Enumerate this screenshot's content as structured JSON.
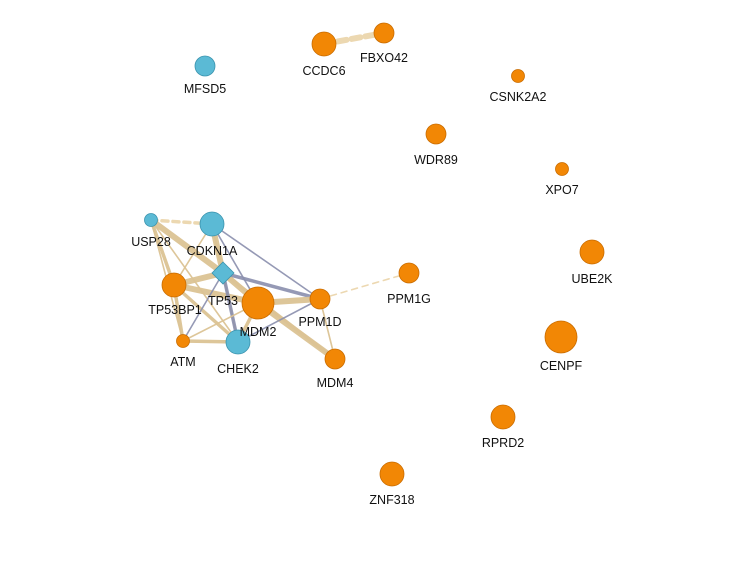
{
  "colors": {
    "orange": "#f28705",
    "orange_stroke": "#c96c00",
    "blue": "#5bbad5",
    "blue_stroke": "#3a93ae",
    "edge_tan": "#dcc394",
    "edge_tan_dashed": "#ecd6ad",
    "edge_gray": "#8a8fad"
  },
  "nodes": [
    {
      "id": "CCDC6",
      "label": "CCDC6",
      "color": "orange",
      "size": "large",
      "shape": "circle"
    },
    {
      "id": "FBXO42",
      "label": "FBXO42",
      "color": "orange",
      "size": "medium",
      "shape": "circle"
    },
    {
      "id": "MFSD5",
      "label": "MFSD5",
      "color": "blue",
      "size": "medium",
      "shape": "circle"
    },
    {
      "id": "CSNK2A2",
      "label": "CSNK2A2",
      "color": "orange",
      "size": "small",
      "shape": "circle"
    },
    {
      "id": "WDR89",
      "label": "WDR89",
      "color": "orange",
      "size": "medium",
      "shape": "circle"
    },
    {
      "id": "XPO7",
      "label": "XPO7",
      "color": "orange",
      "size": "small",
      "shape": "circle"
    },
    {
      "id": "USP28",
      "label": "USP28",
      "color": "blue",
      "size": "small",
      "shape": "circle"
    },
    {
      "id": "CDKN1A",
      "label": "CDKN1A",
      "color": "blue",
      "size": "large",
      "shape": "circle"
    },
    {
      "id": "UBE2K",
      "label": "UBE2K",
      "color": "orange",
      "size": "large",
      "shape": "circle"
    },
    {
      "id": "TP53",
      "label": "TP53",
      "color": "blue",
      "size": "medium",
      "shape": "diamond"
    },
    {
      "id": "PPM1G",
      "label": "PPM1G",
      "color": "orange",
      "size": "medium",
      "shape": "circle"
    },
    {
      "id": "TP53BP1",
      "label": "TP53BP1",
      "color": "orange",
      "size": "large",
      "shape": "circle"
    },
    {
      "id": "MDM2",
      "label": "MDM2",
      "color": "orange",
      "size": "xlarge",
      "shape": "circle"
    },
    {
      "id": "PPM1D",
      "label": "PPM1D",
      "color": "orange",
      "size": "medium",
      "shape": "circle"
    },
    {
      "id": "CENPF",
      "label": "CENPF",
      "color": "orange",
      "size": "xlarge",
      "shape": "circle"
    },
    {
      "id": "ATM",
      "label": "ATM",
      "color": "orange",
      "size": "small",
      "shape": "circle"
    },
    {
      "id": "CHEK2",
      "label": "CHEK2",
      "color": "blue",
      "size": "large",
      "shape": "circle"
    },
    {
      "id": "MDM4",
      "label": "MDM4",
      "color": "orange",
      "size": "medium",
      "shape": "circle"
    },
    {
      "id": "RPRD2",
      "label": "RPRD2",
      "color": "orange",
      "size": "large",
      "shape": "circle"
    },
    {
      "id": "ZNF318",
      "label": "ZNF318",
      "color": "orange",
      "size": "large",
      "shape": "circle"
    }
  ],
  "edges": [
    {
      "source": "CCDC6",
      "target": "FBXO42",
      "style": "tan-dashed",
      "weight": "heavy"
    },
    {
      "source": "USP28",
      "target": "CDKN1A",
      "style": "tan-dashed",
      "weight": "medium"
    },
    {
      "source": "PPM1D",
      "target": "PPM1G",
      "style": "tan-dashed",
      "weight": "thin"
    },
    {
      "source": "USP28",
      "target": "TP53",
      "style": "tan",
      "weight": "heavy"
    },
    {
      "source": "USP28",
      "target": "TP53BP1",
      "style": "tan",
      "weight": "medium"
    },
    {
      "source": "USP28",
      "target": "CHEK2",
      "style": "tan",
      "weight": "thin"
    },
    {
      "source": "USP28",
      "target": "ATM",
      "style": "tan",
      "weight": "thin"
    },
    {
      "source": "CDKN1A",
      "target": "TP53",
      "style": "tan",
      "weight": "heavy"
    },
    {
      "source": "CDKN1A",
      "target": "TP53BP1",
      "style": "tan",
      "weight": "thin"
    },
    {
      "source": "CDKN1A",
      "target": "MDM2",
      "style": "gray",
      "weight": "thin"
    },
    {
      "source": "CDKN1A",
      "target": "PPM1D",
      "style": "gray",
      "weight": "thin"
    },
    {
      "source": "CDKN1A",
      "target": "CHEK2",
      "style": "tan",
      "weight": "thin"
    },
    {
      "source": "TP53BP1",
      "target": "TP53",
      "style": "tan",
      "weight": "heavy"
    },
    {
      "source": "TP53BP1",
      "target": "MDM2",
      "style": "tan",
      "weight": "heavy"
    },
    {
      "source": "TP53BP1",
      "target": "ATM",
      "style": "tan",
      "weight": "medium"
    },
    {
      "source": "TP53BP1",
      "target": "CHEK2",
      "style": "tan",
      "weight": "medium"
    },
    {
      "source": "TP53",
      "target": "MDM2",
      "style": "tan",
      "weight": "heavy"
    },
    {
      "source": "TP53",
      "target": "PPM1D",
      "style": "gray",
      "weight": "medium"
    },
    {
      "source": "TP53",
      "target": "CHEK2",
      "style": "gray",
      "weight": "medium"
    },
    {
      "source": "TP53",
      "target": "ATM",
      "style": "gray",
      "weight": "thin"
    },
    {
      "source": "TP53",
      "target": "MDM4",
      "style": "tan",
      "weight": "medium"
    },
    {
      "source": "MDM2",
      "target": "PPM1D",
      "style": "tan",
      "weight": "heavy"
    },
    {
      "source": "MDM2",
      "target": "CHEK2",
      "style": "tan",
      "weight": "medium"
    },
    {
      "source": "MDM2",
      "target": "ATM",
      "style": "tan",
      "weight": "thin"
    },
    {
      "source": "MDM2",
      "target": "MDM4",
      "style": "tan",
      "weight": "heavy"
    },
    {
      "source": "PPM1D",
      "target": "CHEK2",
      "style": "gray",
      "weight": "thin"
    },
    {
      "source": "PPM1D",
      "target": "MDM4",
      "style": "tan",
      "weight": "thin"
    },
    {
      "source": "ATM",
      "target": "CHEK2",
      "style": "tan",
      "weight": "medium"
    }
  ]
}
